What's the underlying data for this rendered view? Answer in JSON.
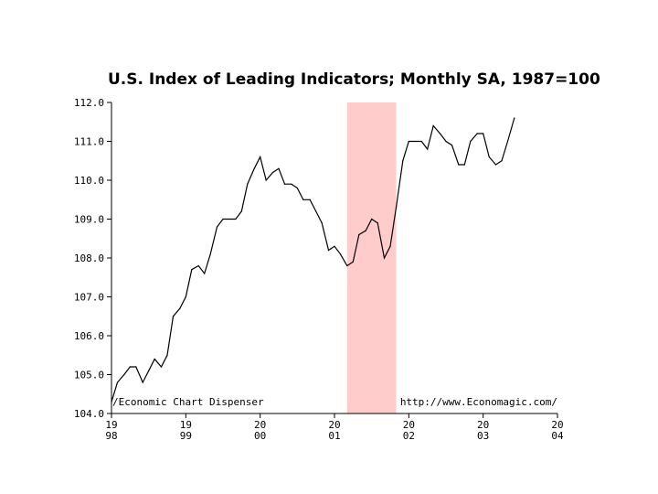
{
  "chart_data": {
    "type": "line",
    "title": "U.S. Index of Leading Indicators; Monthly SA, 1987=100",
    "xlabel": "",
    "ylabel": "",
    "ylim": [
      104.0,
      112.0
    ],
    "y_ticks": [
      "104.0",
      "105.0",
      "106.0",
      "107.0",
      "108.0",
      "109.0",
      "110.0",
      "111.0",
      "112.0"
    ],
    "x_ticks": [
      {
        "top": "19",
        "bottom": "98"
      },
      {
        "top": "19",
        "bottom": "99"
      },
      {
        "top": "20",
        "bottom": "00"
      },
      {
        "top": "20",
        "bottom": "01"
      },
      {
        "top": "20",
        "bottom": "02"
      },
      {
        "top": "20",
        "bottom": "03"
      },
      {
        "top": "20",
        "bottom": "04"
      }
    ],
    "xlim": [
      1998.0,
      2004.0
    ],
    "grid": false,
    "shaded_region": {
      "start": 2001.17,
      "end": 2001.83,
      "color": "#ffcccc"
    },
    "series": [
      {
        "color": "#000000",
        "x": [
          1998.0,
          1998.08,
          1998.17,
          1998.25,
          1998.33,
          1998.42,
          1998.5,
          1998.58,
          1998.67,
          1998.75,
          1998.83,
          1998.92,
          1999.0,
          1999.08,
          1999.17,
          1999.25,
          1999.33,
          1999.42,
          1999.5,
          1999.58,
          1999.67,
          1999.75,
          1999.83,
          1999.92,
          2000.0,
          2000.08,
          2000.17,
          2000.25,
          2000.33,
          2000.42,
          2000.5,
          2000.58,
          2000.67,
          2000.75,
          2000.83,
          2000.92,
          2001.0,
          2001.08,
          2001.17,
          2001.25,
          2001.33,
          2001.42,
          2001.5,
          2001.58,
          2001.67,
          2001.75,
          2001.83,
          2001.92,
          2002.0,
          2002.08,
          2002.17,
          2002.25,
          2002.33,
          2002.42,
          2002.5,
          2002.58,
          2002.67,
          2002.75,
          2002.83,
          2002.92,
          2003.0,
          2003.08,
          2003.17,
          2003.25,
          2003.33,
          2003.42
        ],
        "values": [
          104.3,
          104.8,
          105.0,
          105.2,
          105.2,
          104.8,
          105.1,
          105.4,
          105.2,
          105.5,
          106.5,
          106.7,
          107.0,
          107.7,
          107.8,
          107.6,
          108.1,
          108.8,
          109.0,
          109.0,
          109.0,
          109.2,
          109.9,
          110.3,
          110.6,
          110.0,
          110.2,
          110.3,
          109.9,
          109.9,
          109.8,
          109.5,
          109.5,
          109.2,
          108.9,
          108.2,
          108.3,
          108.1,
          107.8,
          107.9,
          108.6,
          108.7,
          109.0,
          108.9,
          108.0,
          108.3,
          109.3,
          110.5,
          111.0,
          111.0,
          111.0,
          110.8,
          111.4,
          111.2,
          111.0,
          110.9,
          110.4,
          110.4,
          111.0,
          111.2,
          111.2,
          110.6,
          110.4,
          110.5,
          111.0,
          111.6
        ]
      }
    ]
  },
  "annotations": {
    "left_note": "/Economic Chart Dispenser",
    "right_note": "http://www.Economagic.com/"
  }
}
